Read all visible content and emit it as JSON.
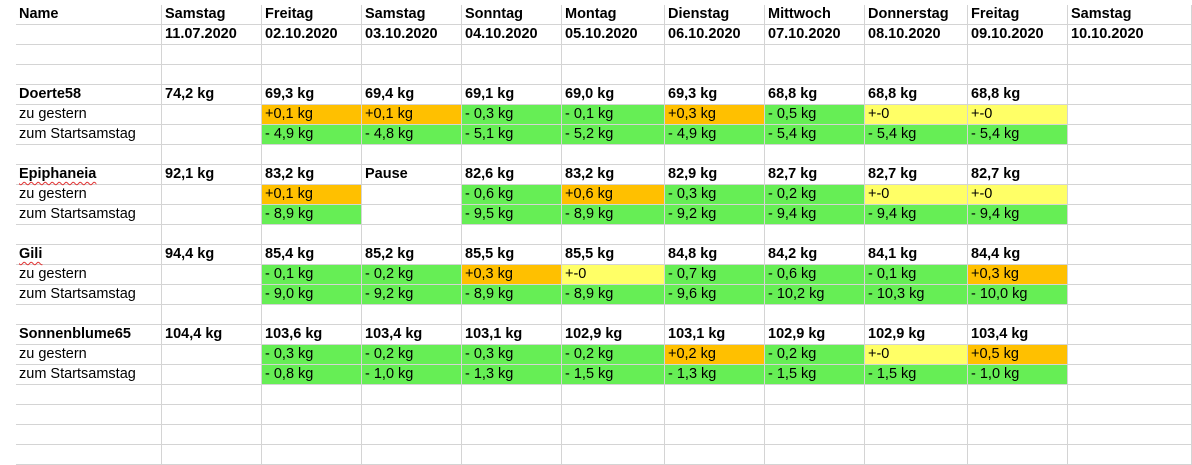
{
  "colors": {
    "green": "#66ee55",
    "orange": "#ffc000",
    "yellow": "#ffff66",
    "grid": "#d4d4d4"
  },
  "header": {
    "row1": [
      "Name",
      "Samstag",
      "Freitag",
      "Samstag",
      "Sonntag",
      "Montag",
      "Dienstag",
      "Mittwoch",
      "Donnerstag",
      "Freitag",
      "Samstag"
    ],
    "row2": [
      "",
      "11.07.2020",
      "02.10.2020",
      "03.10.2020",
      "04.10.2020",
      "05.10.2020",
      "06.10.2020",
      "07.10.2020",
      "08.10.2020",
      "09.10.2020",
      "10.10.2020"
    ]
  },
  "labels": {
    "daily": "zu gestern",
    "start": "zum Startsamstag"
  },
  "persons": [
    {
      "name": "Doerte58",
      "weights": [
        "74,2 kg",
        "69,3 kg",
        "69,4 kg",
        "69,1 kg",
        "69,0 kg",
        "69,3 kg",
        "68,8 kg",
        "68,8 kg",
        "68,8 kg",
        ""
      ],
      "daily": [
        "",
        "+0,1 kg",
        "+0,1 kg",
        "- 0,3 kg",
        "- 0,1 kg",
        "+0,3 kg",
        "- 0,5 kg",
        "+-0",
        "+-0",
        ""
      ],
      "daily_colors": [
        "",
        "orange",
        "orange",
        "green",
        "green",
        "orange",
        "green",
        "yellow",
        "yellow",
        ""
      ],
      "start": [
        "",
        "- 4,9 kg",
        "- 4,8 kg",
        "- 5,1 kg",
        "- 5,2 kg",
        "- 4,9 kg",
        "- 5,4 kg",
        "- 5,4 kg",
        "- 5,4 kg",
        ""
      ],
      "start_colors": [
        "",
        "green",
        "green",
        "green",
        "green",
        "green",
        "green",
        "green",
        "green",
        ""
      ]
    },
    {
      "name": "Epiphaneia",
      "weights": [
        "92,1 kg",
        "83,2 kg",
        "Pause",
        "82,6 kg",
        "83,2 kg",
        "82,9 kg",
        "82,7 kg",
        "82,7 kg",
        "82,7 kg",
        ""
      ],
      "daily": [
        "",
        "+0,1 kg",
        "",
        "- 0,6 kg",
        "+0,6 kg",
        "- 0,3 kg",
        "- 0,2 kg",
        "+-0",
        "+-0",
        ""
      ],
      "daily_colors": [
        "",
        "orange",
        "",
        "green",
        "orange",
        "green",
        "green",
        "yellow",
        "yellow",
        ""
      ],
      "start": [
        "",
        "- 8,9 kg",
        "",
        "- 9,5 kg",
        "- 8,9 kg",
        "- 9,2 kg",
        "- 9,4 kg",
        "- 9,4 kg",
        "- 9,4 kg",
        ""
      ],
      "start_colors": [
        "",
        "green",
        "",
        "green",
        "green",
        "green",
        "green",
        "green",
        "green",
        ""
      ]
    },
    {
      "name": "Gili",
      "weights": [
        "94,4 kg",
        "85,4 kg",
        "85,2 kg",
        "85,5 kg",
        "85,5 kg",
        "84,8 kg",
        "84,2 kg",
        "84,1 kg",
        "84,4 kg",
        ""
      ],
      "daily": [
        "",
        "- 0,1 kg",
        "- 0,2 kg",
        "+0,3 kg",
        "+-0",
        "- 0,7 kg",
        "- 0,6 kg",
        "- 0,1 kg",
        "+0,3 kg",
        ""
      ],
      "daily_colors": [
        "",
        "green",
        "green",
        "orange",
        "yellow",
        "green",
        "green",
        "green",
        "orange",
        ""
      ],
      "start": [
        "",
        "- 9,0 kg",
        "- 9,2 kg",
        "- 8,9 kg",
        "- 8,9 kg",
        "- 9,6 kg",
        "- 10,2 kg",
        "- 10,3 kg",
        "- 10,0 kg",
        ""
      ],
      "start_colors": [
        "",
        "green",
        "green",
        "green",
        "green",
        "green",
        "green",
        "green",
        "green",
        ""
      ]
    },
    {
      "name": "Sonnenblume65",
      "weights": [
        "104,4 kg",
        "103,6 kg",
        "103,4 kg",
        "103,1 kg",
        "102,9 kg",
        "103,1 kg",
        "102,9 kg",
        "102,9 kg",
        "103,4 kg",
        ""
      ],
      "daily": [
        "",
        "- 0,3 kg",
        "- 0,2 kg",
        "- 0,3 kg",
        "- 0,2 kg",
        "+0,2 kg",
        "- 0,2 kg",
        "+-0",
        "+0,5 kg",
        ""
      ],
      "daily_colors": [
        "",
        "green",
        "green",
        "green",
        "green",
        "orange",
        "green",
        "yellow",
        "orange",
        ""
      ],
      "start": [
        "",
        "- 0,8 kg",
        "- 1,0 kg",
        "- 1,3 kg",
        "- 1,5 kg",
        "- 1,3 kg",
        "- 1,5 kg",
        "- 1,5 kg",
        "- 1,0 kg",
        ""
      ],
      "start_colors": [
        "",
        "green",
        "green",
        "green",
        "green",
        "green",
        "green",
        "green",
        "green",
        ""
      ]
    }
  ]
}
